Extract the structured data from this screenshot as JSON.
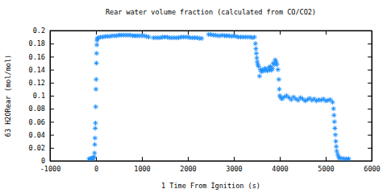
{
  "chart_data": {
    "type": "scatter",
    "title": "Rear water volume fraction (calculated from CO/CO2)",
    "x_label": "1 Time From Ignition (s)",
    "y_label": "63 H2ORear (mol/mol)",
    "color": "#1e90ff",
    "marker": "star",
    "grid": false,
    "xlim": [
      -1000,
      6000
    ],
    "xticks": [
      -1000,
      0,
      1000,
      2000,
      3000,
      4000,
      5000,
      6000
    ],
    "ylim": [
      0,
      0.2
    ],
    "yticks": [
      0,
      0.02,
      0.04,
      0.06,
      0.08,
      0.1,
      0.12,
      0.14,
      0.16,
      0.18,
      0.2
    ],
    "x": [
      -150,
      -120,
      -100,
      -80,
      -60,
      -40,
      -30,
      -25,
      -20,
      -15,
      -10,
      -5,
      0,
      5,
      10,
      15,
      20,
      25,
      30,
      50,
      100,
      150,
      200,
      250,
      300,
      350,
      400,
      450,
      500,
      550,
      600,
      650,
      700,
      750,
      800,
      850,
      900,
      950,
      1000,
      1050,
      1100,
      1150,
      1250,
      1300,
      1350,
      1400,
      1450,
      1500,
      1550,
      1600,
      1650,
      1700,
      1750,
      1800,
      1850,
      1900,
      1950,
      2000,
      2050,
      2100,
      2150,
      2200,
      2250,
      2300,
      2450,
      2500,
      2550,
      2600,
      2650,
      2700,
      2750,
      2800,
      2850,
      2900,
      2950,
      3000,
      3050,
      3100,
      3150,
      3200,
      3250,
      3300,
      3350,
      3400,
      3450,
      3470,
      3480,
      3490,
      3500,
      3510,
      3520,
      3540,
      3560,
      3580,
      3600,
      3620,
      3650,
      3680,
      3700,
      3730,
      3760,
      3780,
      3800,
      3820,
      3840,
      3860,
      3880,
      3900,
      3920,
      3940,
      3960,
      3980,
      3990,
      4000,
      4020,
      4050,
      4100,
      4150,
      4200,
      4250,
      4300,
      4350,
      4400,
      4450,
      4500,
      4550,
      4600,
      4650,
      4700,
      4750,
      4800,
      4850,
      4900,
      4950,
      5000,
      5050,
      5100,
      5150,
      5170,
      5180,
      5190,
      5200,
      5210,
      5220,
      5230,
      5240,
      5260,
      5280,
      5300,
      5350,
      5400,
      5450,
      5500
    ],
    "values": [
      0.003,
      0.003,
      0.004,
      0.004,
      0.004,
      0.006,
      0.012,
      0.025,
      0.035,
      0.05,
      0.058,
      0.083,
      0.11,
      0.125,
      0.15,
      0.165,
      0.178,
      0.185,
      0.188,
      0.189,
      0.19,
      0.19,
      0.191,
      0.191,
      0.191,
      0.192,
      0.192,
      0.192,
      0.193,
      0.193,
      0.193,
      0.193,
      0.193,
      0.193,
      0.192,
      0.192,
      0.192,
      0.192,
      0.192,
      0.192,
      0.191,
      0.19,
      0.189,
      0.189,
      0.189,
      0.189,
      0.19,
      0.19,
      0.19,
      0.189,
      0.189,
      0.189,
      0.189,
      0.189,
      0.19,
      0.19,
      0.19,
      0.19,
      0.189,
      0.189,
      0.189,
      0.189,
      0.188,
      0.188,
      0.194,
      0.194,
      0.193,
      0.193,
      0.192,
      0.192,
      0.193,
      0.192,
      0.192,
      0.192,
      0.191,
      0.192,
      0.191,
      0.19,
      0.19,
      0.19,
      0.19,
      0.19,
      0.19,
      0.189,
      0.19,
      0.18,
      0.172,
      0.165,
      0.158,
      0.152,
      0.148,
      0.145,
      0.13,
      0.14,
      0.137,
      0.14,
      0.138,
      0.142,
      0.14,
      0.138,
      0.143,
      0.14,
      0.145,
      0.139,
      0.142,
      0.15,
      0.148,
      0.155,
      0.152,
      0.148,
      0.14,
      0.125,
      0.11,
      0.1,
      0.097,
      0.095,
      0.098,
      0.1,
      0.097,
      0.094,
      0.098,
      0.095,
      0.093,
      0.097,
      0.095,
      0.092,
      0.094,
      0.096,
      0.093,
      0.095,
      0.092,
      0.094,
      0.093,
      0.095,
      0.092,
      0.093,
      0.094,
      0.09,
      0.08,
      0.07,
      0.06,
      0.05,
      0.04,
      0.03,
      0.022,
      0.015,
      0.01,
      0.006,
      0.004,
      0.004,
      0.003,
      0.003,
      0.003
    ]
  }
}
